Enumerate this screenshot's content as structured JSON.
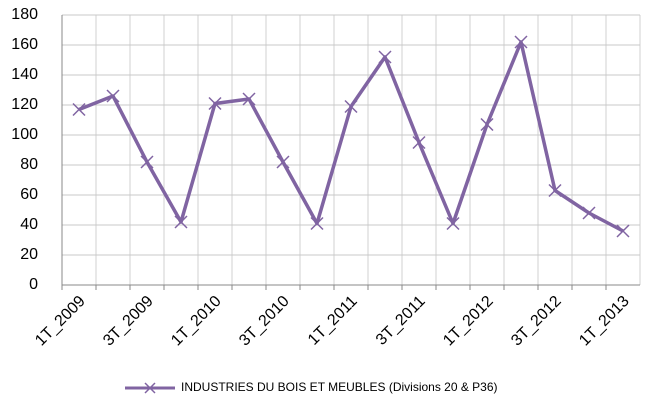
{
  "chart_data": {
    "type": "line",
    "categories": [
      "1T_2009",
      null,
      "3T_2009",
      null,
      "1T_2010",
      null,
      "3T_2010",
      null,
      "1T_2011",
      null,
      "3T_2011",
      null,
      "1T_2012",
      null,
      "3T_2012",
      null,
      "1T_2013"
    ],
    "series": [
      {
        "name": "INDUSTRIES DU BOIS ET MEUBLES (Divisions 20 & P36)",
        "color": "#8064a2",
        "values": [
          117,
          126,
          82,
          42,
          121,
          124,
          82,
          41,
          119,
          152,
          95,
          41,
          107,
          162,
          63,
          48,
          36
        ]
      }
    ],
    "ylim": [
      0,
      180
    ],
    "yticks": [
      0,
      20,
      40,
      60,
      80,
      100,
      120,
      140,
      160,
      180
    ],
    "grid": true,
    "legend": "bottom"
  }
}
